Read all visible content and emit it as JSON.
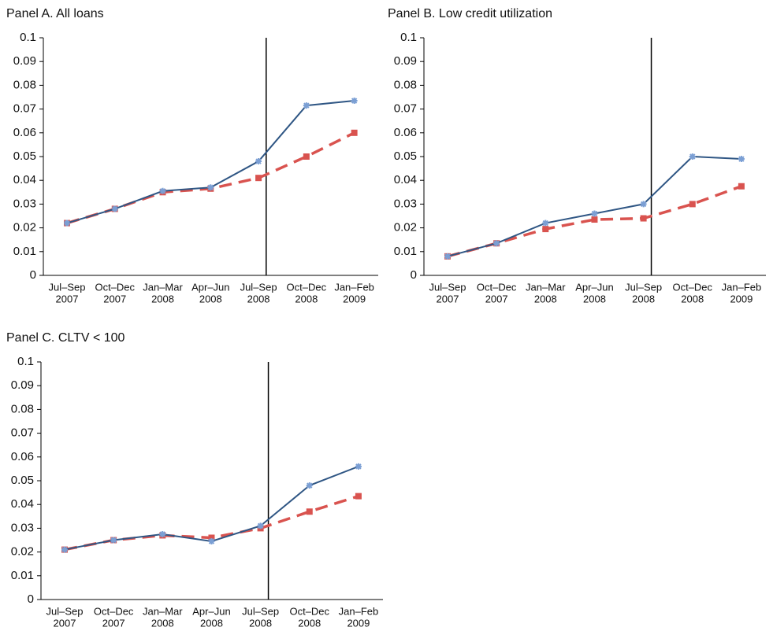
{
  "chart_data": [
    {
      "type": "line",
      "title": "Panel A. All loans",
      "categories": [
        [
          "Jul–Sep",
          "2007"
        ],
        [
          "Oct–Dec",
          "2007"
        ],
        [
          "Jan–Mar",
          "2008"
        ],
        [
          "Apr–Jun",
          "2008"
        ],
        [
          "Jul–Sep",
          "2008"
        ],
        [
          "Oct–Dec",
          "2008"
        ],
        [
          "Jan–Feb",
          "2009"
        ]
      ],
      "series": [
        {
          "color": "#2f5684",
          "marker_color": "#7b9fd4",
          "values": [
            0.022,
            0.028,
            0.0355,
            0.037,
            0.048,
            0.0715,
            0.0735
          ]
        },
        {
          "color": "#d9534f",
          "values": [
            0.022,
            0.028,
            0.035,
            0.0365,
            0.041,
            0.05,
            0.06
          ]
        }
      ],
      "ylim": [
        0,
        0.1
      ],
      "yticks": [
        0,
        0.01,
        0.02,
        0.03,
        0.04,
        0.05,
        0.06,
        0.07,
        0.08,
        0.09,
        0.1
      ]
    },
    {
      "type": "line",
      "title": "Panel B. Low credit utilization",
      "categories": [
        [
          "Jul–Sep",
          "2007"
        ],
        [
          "Oct–Dec",
          "2007"
        ],
        [
          "Jan–Mar",
          "2008"
        ],
        [
          "Apr–Jun",
          "2008"
        ],
        [
          "Jul–Sep",
          "2008"
        ],
        [
          "Oct–Dec",
          "2008"
        ],
        [
          "Jan–Feb",
          "2009"
        ]
      ],
      "series": [
        {
          "color": "#2f5684",
          "marker_color": "#7b9fd4",
          "values": [
            0.008,
            0.0135,
            0.022,
            0.026,
            0.03,
            0.05,
            0.049
          ]
        },
        {
          "color": "#d9534f",
          "values": [
            0.008,
            0.0135,
            0.0195,
            0.0235,
            0.024,
            0.03,
            0.0375
          ]
        }
      ],
      "ylim": [
        0,
        0.1
      ],
      "yticks": [
        0,
        0.01,
        0.02,
        0.03,
        0.04,
        0.05,
        0.06,
        0.07,
        0.08,
        0.09,
        0.1
      ]
    },
    {
      "type": "line",
      "title": "Panel C. CLTV < 100",
      "categories": [
        [
          "Jul–Sep",
          "2007"
        ],
        [
          "Oct–Dec",
          "2007"
        ],
        [
          "Jan–Mar",
          "2008"
        ],
        [
          "Apr–Jun",
          "2008"
        ],
        [
          "Jul–Sep",
          "2008"
        ],
        [
          "Oct–Dec",
          "2008"
        ],
        [
          "Jan–Feb",
          "2009"
        ]
      ],
      "series": [
        {
          "color": "#2f5684",
          "marker_color": "#7b9fd4",
          "values": [
            0.021,
            0.025,
            0.0275,
            0.0245,
            0.031,
            0.048,
            0.056
          ]
        },
        {
          "color": "#d9534f",
          "values": [
            0.021,
            0.025,
            0.027,
            0.026,
            0.03,
            0.037,
            0.0435
          ]
        }
      ],
      "ylim": [
        0,
        0.1
      ],
      "yticks": [
        0,
        0.01,
        0.02,
        0.03,
        0.04,
        0.05,
        0.06,
        0.07,
        0.08,
        0.09,
        0.1
      ]
    }
  ]
}
